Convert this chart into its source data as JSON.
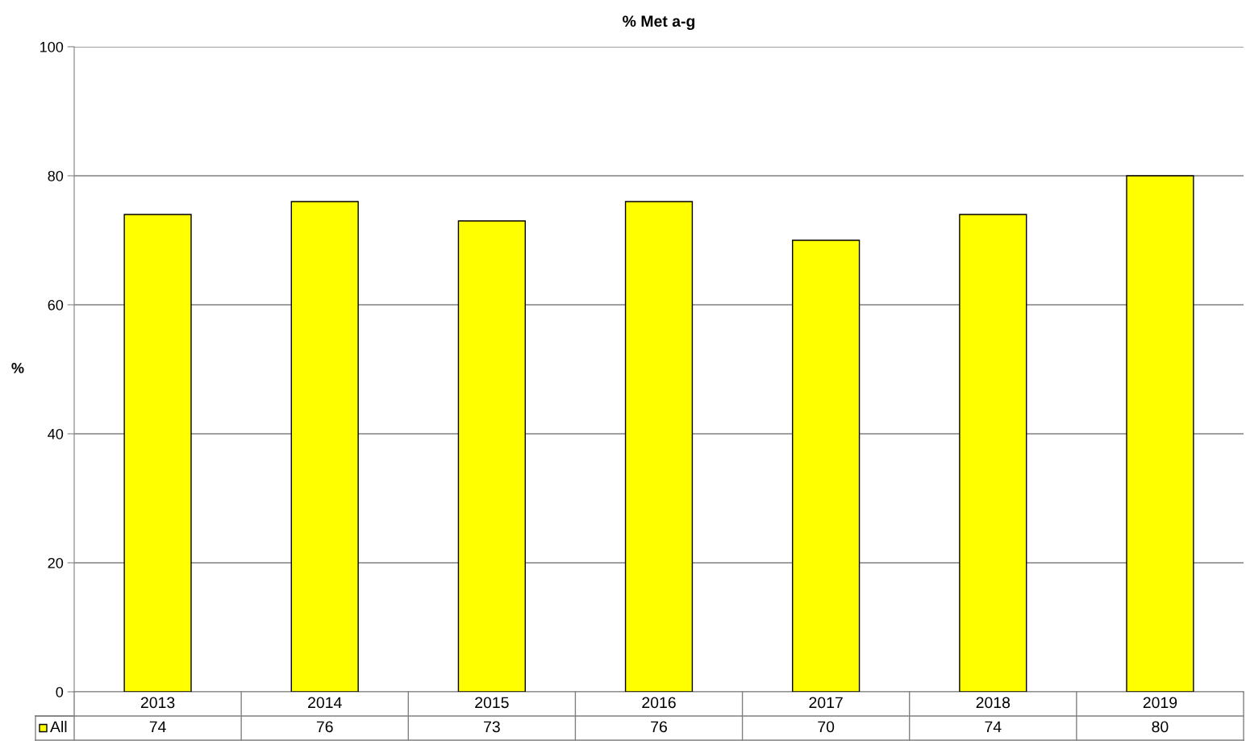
{
  "chart_data": {
    "type": "bar",
    "title": "% Met a-g",
    "ylabel": "%",
    "categories": [
      "2013",
      "2014",
      "2015",
      "2016",
      "2017",
      "2018",
      "2019"
    ],
    "series": [
      {
        "name": "All",
        "color": "#ffff00",
        "values": [
          74,
          76,
          73,
          76,
          70,
          74,
          80
        ]
      }
    ],
    "ylim": [
      0,
      100
    ],
    "yticks": [
      0,
      20,
      40,
      60,
      80,
      100
    ],
    "grid": "y",
    "data_labels": true,
    "legend": "bottom"
  }
}
